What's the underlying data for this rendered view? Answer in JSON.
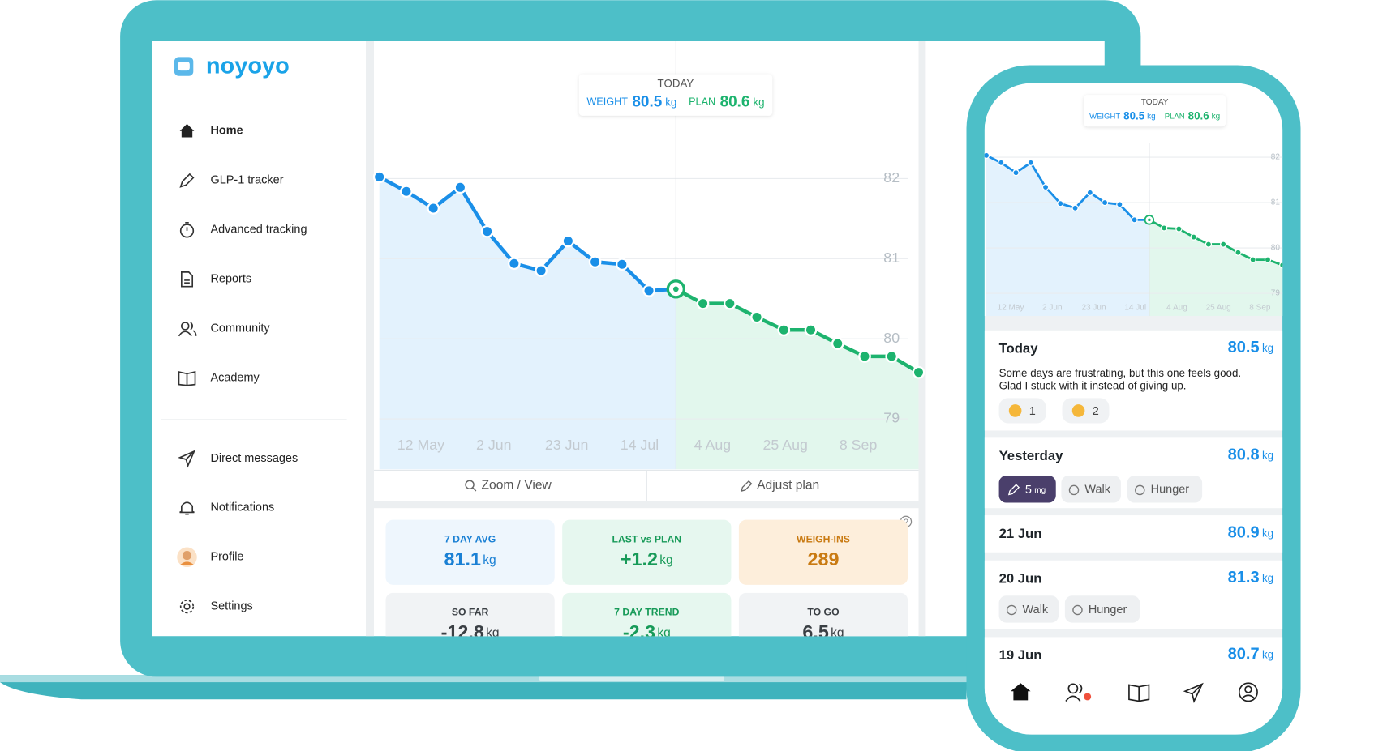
{
  "app": {
    "brand": "noyoyo",
    "nav": [
      "Home",
      "GLP-1 tracker",
      "Advanced tracking",
      "Reports",
      "Community",
      "Academy"
    ],
    "nav2": [
      "Direct messages",
      "Notifications",
      "Profile",
      "Settings"
    ]
  },
  "desktop_chart": {
    "type": "line",
    "tooltip": {
      "title": "TODAY",
      "weight_label": "WEIGHT",
      "weight": 80.5,
      "weight_unit": "kg",
      "plan_label": "PLAN",
      "plan": 80.6,
      "plan_unit": "kg"
    },
    "x_labels": [
      "12 May",
      "2 Jun",
      "23 Jun",
      "14 Jul",
      "4 Aug",
      "25 Aug",
      "8 Sep"
    ],
    "ylim": [
      78.37,
      83.72
    ],
    "yticks": [
      79,
      80,
      81,
      82
    ],
    "grid": true,
    "series": [
      {
        "name": "WEIGHT",
        "color": "#1a8fe8",
        "values": [
          82.02,
          81.84,
          81.63,
          81.89,
          81.34,
          80.94,
          80.85,
          81.22,
          80.96,
          80.93,
          80.6,
          80.62,
          null,
          null,
          null,
          null,
          null,
          null,
          null,
          null,
          null
        ]
      },
      {
        "name": "PLAN",
        "color": "#1db36e",
        "values": [
          null,
          null,
          null,
          null,
          null,
          null,
          null,
          null,
          null,
          null,
          null,
          80.62,
          80.44,
          80.44,
          80.27,
          80.11,
          80.11,
          79.94,
          79.78,
          79.78,
          79.58
        ]
      }
    ]
  },
  "buttons": [
    "Zoom / View",
    "Adjust plan"
  ],
  "stats": [
    {
      "label": "7 DAY AVG",
      "value": 81.1,
      "unit": "kg"
    },
    {
      "label": "LAST vs PLAN",
      "value": "+1.2",
      "unit": "kg"
    },
    {
      "label": "WEIGH-INS",
      "value": 289
    },
    {
      "label": "SO FAR",
      "value": -12.8,
      "unit": "kg"
    },
    {
      "label": "7 DAY TREND",
      "value": -2.3,
      "unit": "kg"
    },
    {
      "label": "TO GO",
      "value": 6.5,
      "unit": "kg"
    }
  ],
  "phone_chart": {
    "type": "line",
    "tooltip": {
      "title": "TODAY",
      "weight_label": "WEIGHT",
      "weight": 80.5,
      "weight_unit": "kg",
      "plan_label": "PLAN",
      "plan": 80.6,
      "plan_unit": "kg"
    },
    "x_labels": [
      "12 May",
      "2 Jun",
      "23 Jun",
      "14 Jul",
      "4 Aug",
      "25 Aug",
      "8 Sep"
    ],
    "ylim": [
      78.5,
      82.32
    ],
    "yticks": [
      79,
      80,
      81,
      82
    ],
    "grid": true,
    "series": [
      {
        "name": "WEIGHT",
        "color": "#1a8fe8",
        "values": [
          82.04,
          81.88,
          81.66,
          81.88,
          81.34,
          80.98,
          80.88,
          81.22,
          81.0,
          80.96,
          80.62,
          80.62,
          null,
          null,
          null,
          null,
          null,
          null,
          null,
          null,
          null
        ]
      },
      {
        "name": "PLAN",
        "color": "#1db36e",
        "values": [
          null,
          null,
          null,
          null,
          null,
          null,
          null,
          null,
          null,
          null,
          null,
          80.62,
          80.44,
          80.42,
          80.24,
          80.08,
          80.08,
          79.9,
          79.74,
          79.74,
          79.62
        ]
      }
    ]
  },
  "entries": [
    {
      "date": "Today",
      "weight": 80.5,
      "unit": "kg",
      "note": [
        "Some days are frustrating, but this one feels good.",
        "Glad I stuck with it instead of giving up."
      ],
      "reactions": [
        1,
        2
      ]
    },
    {
      "date": "Yesterday",
      "weight": 80.8,
      "unit": "kg",
      "dose": {
        "value": 5,
        "unit": "mg"
      },
      "tags": [
        "Walk",
        "Hunger"
      ]
    },
    {
      "date": "21 Jun",
      "weight": 80.9,
      "unit": "kg"
    },
    {
      "date": "20 Jun",
      "weight": 81.3,
      "unit": "kg",
      "tags": [
        "Walk",
        "Hunger"
      ]
    },
    {
      "date": "19 Jun",
      "weight": 80.7,
      "unit": "kg"
    }
  ]
}
